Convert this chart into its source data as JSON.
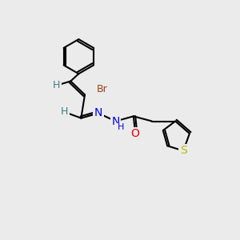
{
  "background_color": "#ebebeb",
  "bond_color": "#000000",
  "bond_width": 1.5,
  "atom_colors": {
    "C": "#000000",
    "H": "#3a8080",
    "N": "#0000ee",
    "O": "#ee0000",
    "S": "#bbbb00",
    "Br": "#a04010"
  },
  "font_size_atom": 9,
  "font_size_label": 9
}
